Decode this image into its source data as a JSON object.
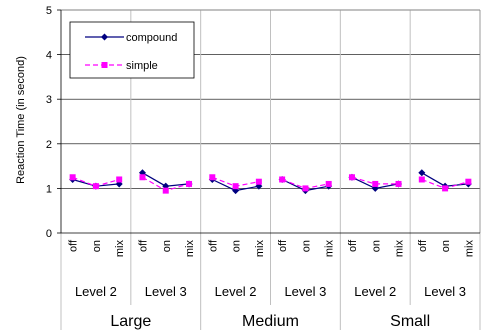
{
  "chart_data": {
    "type": "line",
    "title": "",
    "ylabel": "Reaction Time (in second)",
    "xlabel": "",
    "ylim": [
      0,
      5
    ],
    "yticks": [
      0,
      1,
      2,
      3,
      4,
      5
    ],
    "grid": true,
    "legend_position": "top-left",
    "categories": [
      "off",
      "on",
      "mix"
    ],
    "levels": [
      "Level 2",
      "Level 3",
      "Level 2",
      "Level 3",
      "Level 2",
      "Level 3"
    ],
    "sizes": [
      "Large",
      "Medium",
      "Small"
    ],
    "series": [
      {
        "name": "compound",
        "color": "#000080",
        "marker": "diamond",
        "line": "solid",
        "groups": [
          [
            1.2,
            1.05,
            1.1
          ],
          [
            1.35,
            1.05,
            1.1
          ],
          [
            1.2,
            0.95,
            1.05
          ],
          [
            1.2,
            0.95,
            1.05
          ],
          [
            1.25,
            1.0,
            1.1
          ],
          [
            1.35,
            1.05,
            1.1
          ]
        ]
      },
      {
        "name": "simple",
        "color": "#FF00FF",
        "marker": "square",
        "line": "dashed",
        "groups": [
          [
            1.25,
            1.05,
            1.2
          ],
          [
            1.25,
            0.95,
            1.1
          ],
          [
            1.25,
            1.05,
            1.15
          ],
          [
            1.2,
            1.0,
            1.1
          ],
          [
            1.25,
            1.1,
            1.1
          ],
          [
            1.2,
            1.0,
            1.15
          ]
        ]
      }
    ]
  }
}
